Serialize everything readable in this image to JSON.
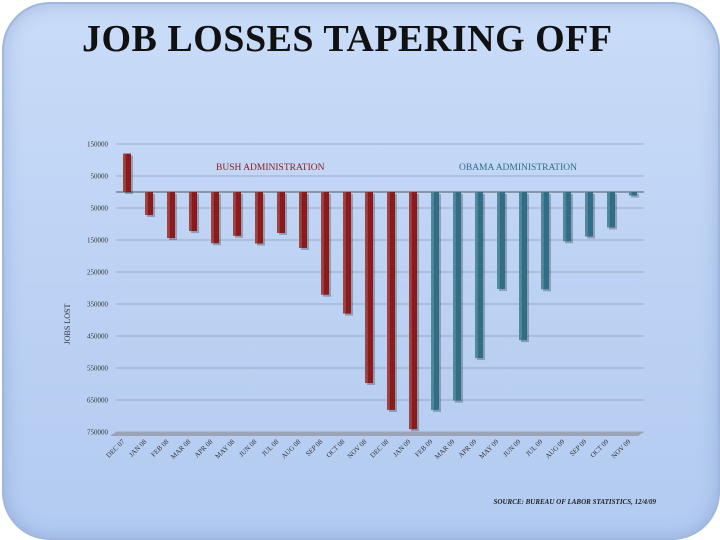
{
  "title": "JOB LOSSES TAPERING OFF",
  "colors": {
    "bush": "#8b1a1a",
    "obama": "#2f6e86"
  },
  "chart_data": {
    "type": "bar",
    "title": "JOB LOSSES TAPERING OFF",
    "ylabel": "JOBS LOST",
    "xlabel": "",
    "ylim": [
      -750000,
      150000
    ],
    "yticks": [
      150000,
      50000,
      -50000,
      -150000,
      -250000,
      -350000,
      -450000,
      -550000,
      -650000,
      -750000
    ],
    "ytick_labels": [
      "150000",
      "50000",
      "50000",
      "150000",
      "250000",
      "350000",
      "450000",
      "550000",
      "650000",
      "750000"
    ],
    "categories": [
      "DEC 07",
      "JAN 08",
      "FEB 08",
      "MAR 08",
      "APR 08",
      "MAY 08",
      "JUN 08",
      "JUL 08",
      "AUG 08",
      "SEP 08",
      "OCT 08",
      "NOV 08",
      "DEC 08",
      "JAN 09",
      "FEB 09",
      "MAR 09",
      "APR 09",
      "MAY 09",
      "JUN 09",
      "JUL 09",
      "AUG 09",
      "SEP 09",
      "OCT 09",
      "NOV 09"
    ],
    "values": [
      120000,
      -72000,
      -144000,
      -122000,
      -160000,
      -137000,
      -161000,
      -128000,
      -175000,
      -321000,
      -380000,
      -597000,
      -681000,
      -741000,
      -681000,
      -652000,
      -519000,
      -303000,
      -463000,
      -304000,
      -154000,
      -139000,
      -111000,
      -11000
    ],
    "series": [
      {
        "name": "BUSH ADMINISTRATION",
        "from": 0,
        "to": 13,
        "color": "#8b1a1a"
      },
      {
        "name": "OBAMA ADMINISTRATION",
        "from": 14,
        "to": 23,
        "color": "#2f6e86"
      }
    ],
    "annotations": [
      "BUSH ADMINISTRATION",
      "OBAMA ADMINISTRATION"
    ],
    "source": "SOURCE: BUREAU OF LABOR STATISTICS, 12/4/09",
    "grid": true,
    "legend": "none"
  }
}
